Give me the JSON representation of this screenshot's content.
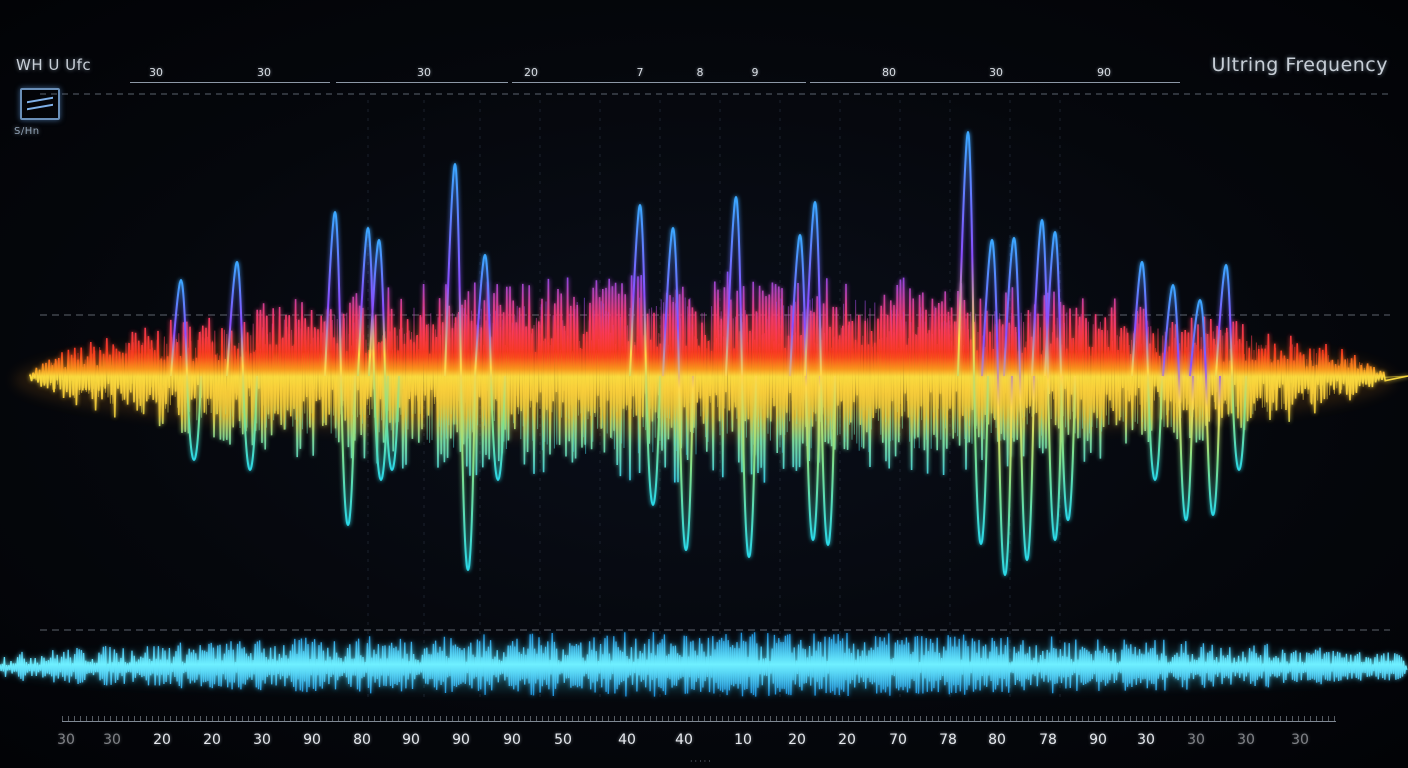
{
  "header": {
    "app_title": "WH U Ufc",
    "panel_title": "Ultring Frequency",
    "panel_subtitle": "S/Hn",
    "display_icon": "oscilloscope-icon"
  },
  "top_scale": {
    "labels": [
      "30",
      "30",
      "30",
      "20",
      "7",
      "8",
      "9",
      "80",
      "30",
      "90"
    ]
  },
  "bottom_scale": {
    "labels": [
      "30",
      "30",
      "20",
      "20",
      "30",
      "90",
      "80",
      "90",
      "90",
      "90",
      "50",
      "40",
      "40",
      "10",
      "20",
      "20",
      "70",
      "78",
      "80",
      "78",
      "90",
      "30",
      "30",
      "30",
      "30"
    ]
  },
  "colors": {
    "background": "#030509",
    "baseline": "#ffd84a",
    "lower_band": "#38d6f0",
    "accent_violet": "#8a5cff",
    "accent_red": "#ff3a2a",
    "accent_orange": "#ff8a1f"
  }
}
